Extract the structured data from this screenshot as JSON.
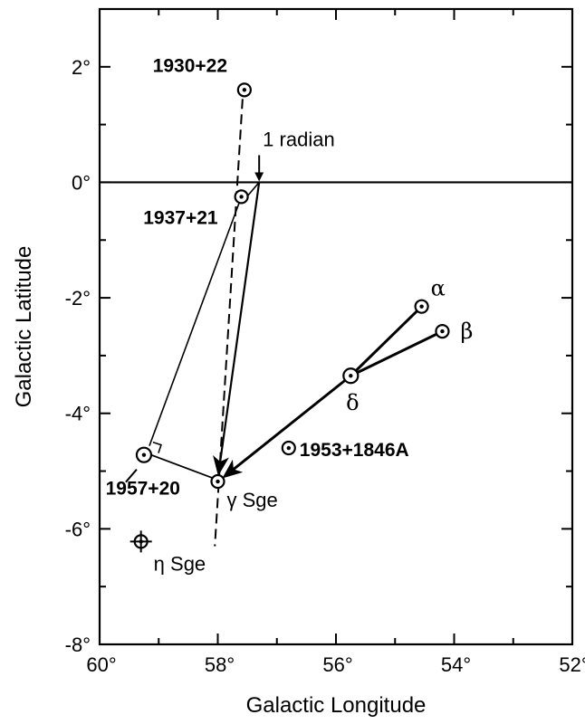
{
  "chart_data": {
    "type": "scatter",
    "title": "",
    "xlabel": "Galactic  Longitude",
    "ylabel": "Galactic  Latitude",
    "xlim": [
      60,
      52
    ],
    "ylim": [
      -8,
      3
    ],
    "x_ticks": [
      {
        "value": 60,
        "label": "60°"
      },
      {
        "value": 58,
        "label": "58°"
      },
      {
        "value": 56,
        "label": "56°"
      },
      {
        "value": 54,
        "label": "54°"
      },
      {
        "value": 52,
        "label": "52°"
      }
    ],
    "y_ticks": [
      {
        "value": 2,
        "label": "2°"
      },
      {
        "value": 0,
        "label": "0°"
      },
      {
        "value": -2,
        "label": "-2°"
      },
      {
        "value": -4,
        "label": "-4°"
      },
      {
        "value": -6,
        "label": "-6°"
      },
      {
        "value": -8,
        "label": "-8°"
      }
    ],
    "points": [
      {
        "id": "p1930",
        "label": "1930+22",
        "x": 57.55,
        "y": 1.6,
        "style": "bold"
      },
      {
        "id": "p1937",
        "label": "1937+21",
        "x": 57.6,
        "y": -0.25,
        "style": "bold"
      },
      {
        "id": "p1957",
        "label": "1957+20",
        "x": 59.25,
        "y": -4.72,
        "style": "bold"
      },
      {
        "id": "p1953",
        "label": "1953+1846A",
        "x": 56.8,
        "y": -4.6,
        "style": "bold"
      },
      {
        "id": "gsge",
        "label": "γ Sge",
        "x": 58.0,
        "y": -5.18,
        "style": "plain"
      },
      {
        "id": "esge",
        "label": "η Sge",
        "x": 59.3,
        "y": -6.22,
        "style": "plain"
      },
      {
        "id": "alpha",
        "label": "α",
        "x": 54.55,
        "y": -2.15,
        "style": "greek"
      },
      {
        "id": "beta",
        "label": "β",
        "x": 54.2,
        "y": -2.58,
        "style": "greek"
      },
      {
        "id": "delta",
        "label": "δ",
        "x": 55.75,
        "y": -3.35,
        "style": "greek"
      }
    ],
    "annotations": [
      {
        "id": "radian",
        "text": "1 radian",
        "x": 57.3,
        "y": 0.0
      }
    ]
  }
}
